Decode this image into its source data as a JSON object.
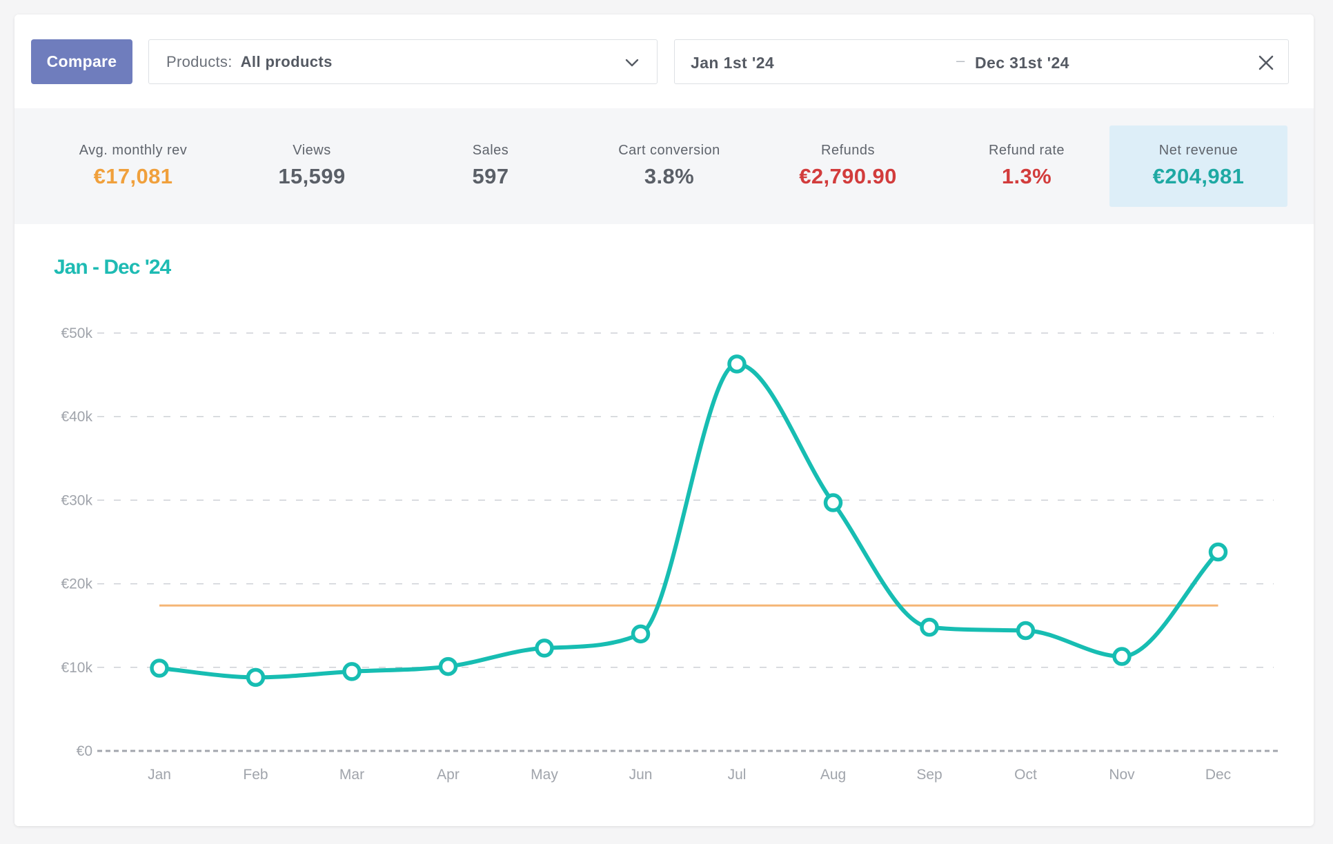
{
  "toolbar": {
    "compare_label": "Compare",
    "products_label": "Products:",
    "products_value": "All products",
    "date_start": "Jan 1st '24",
    "date_separator": "–",
    "date_end": "Dec 31st '24"
  },
  "icons": {
    "products_chevron": "chevron-down-icon",
    "clear_dates": "close-icon"
  },
  "stats": [
    {
      "label": "Avg. monthly rev",
      "value": "€17,081",
      "color": "#f0a03c"
    },
    {
      "label": "Views",
      "value": "15,599",
      "color": "#5a5f67"
    },
    {
      "label": "Sales",
      "value": "597",
      "color": "#5a5f67"
    },
    {
      "label": "Cart conversion",
      "value": "3.8%",
      "color": "#5a5f67"
    },
    {
      "label": "Refunds",
      "value": "€2,790.90",
      "color": "#d23c3c"
    },
    {
      "label": "Refund rate",
      "value": "1.3%",
      "color": "#d23c3c"
    },
    {
      "label": "Net revenue",
      "value": "€204,981",
      "color": "#1ea9a3",
      "highlighted": true
    }
  ],
  "chart_data": {
    "type": "line",
    "title": "Jan - Dec '24",
    "categories": [
      "Jan",
      "Feb",
      "Mar",
      "Apr",
      "May",
      "Jun",
      "Jul",
      "Aug",
      "Sep",
      "Oct",
      "Nov",
      "Dec"
    ],
    "series": [
      {
        "values": [
          9900,
          8800,
          9500,
          10100,
          12300,
          14000,
          46300,
          29700,
          14800,
          14400,
          11300,
          23800
        ],
        "color": "#17bdb2"
      }
    ],
    "reference_line": {
      "value": 17400,
      "color": "#f5b574"
    },
    "y_ticks": [
      "€0",
      "€10k",
      "€20k",
      "€30k",
      "€40k",
      "€50k"
    ],
    "ylim": [
      0,
      50000
    ],
    "grid": true
  }
}
